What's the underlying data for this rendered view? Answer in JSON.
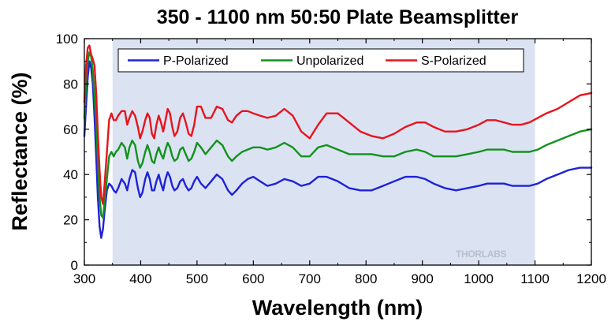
{
  "chart_data": {
    "type": "line",
    "title": "350 - 1100 nm 50:50 Plate Beamsplitter",
    "xlabel": "Wavelength (nm)",
    "ylabel": "Reflectance (%)",
    "xlim": [
      300,
      1200
    ],
    "ylim": [
      0,
      100
    ],
    "xticks": [
      300,
      400,
      500,
      600,
      700,
      800,
      900,
      1000,
      1100,
      1200
    ],
    "yticks": [
      0,
      20,
      40,
      60,
      80,
      100
    ],
    "highlight_band": [
      350,
      1100
    ],
    "highlight_color": "#dbe3f3",
    "grid": false,
    "legend_position": "top",
    "watermark": "THORLABS",
    "series": [
      {
        "name": "P-Polarized",
        "color": "#1f22d6",
        "points": [
          [
            300,
            57
          ],
          [
            303,
            70
          ],
          [
            306,
            83
          ],
          [
            309,
            90
          ],
          [
            312,
            87
          ],
          [
            315,
            80
          ],
          [
            318,
            65
          ],
          [
            321,
            48
          ],
          [
            324,
            30
          ],
          [
            327,
            17
          ],
          [
            330,
            12
          ],
          [
            333,
            16
          ],
          [
            336,
            24
          ],
          [
            340,
            33
          ],
          [
            344,
            36
          ],
          [
            348,
            35
          ],
          [
            352,
            33
          ],
          [
            356,
            32
          ],
          [
            360,
            34
          ],
          [
            366,
            38
          ],
          [
            372,
            36
          ],
          [
            376,
            33
          ],
          [
            380,
            38
          ],
          [
            385,
            42
          ],
          [
            390,
            41
          ],
          [
            395,
            34
          ],
          [
            399,
            30
          ],
          [
            403,
            32
          ],
          [
            408,
            38
          ],
          [
            412,
            41
          ],
          [
            416,
            38
          ],
          [
            420,
            33
          ],
          [
            424,
            33
          ],
          [
            428,
            37
          ],
          [
            432,
            40
          ],
          [
            436,
            36
          ],
          [
            440,
            33
          ],
          [
            444,
            38
          ],
          [
            448,
            41
          ],
          [
            452,
            39
          ],
          [
            456,
            35
          ],
          [
            460,
            33
          ],
          [
            465,
            34
          ],
          [
            470,
            37
          ],
          [
            475,
            38
          ],
          [
            480,
            35
          ],
          [
            485,
            33
          ],
          [
            490,
            34
          ],
          [
            495,
            37
          ],
          [
            500,
            39
          ],
          [
            507,
            36
          ],
          [
            515,
            34
          ],
          [
            525,
            37
          ],
          [
            535,
            40
          ],
          [
            545,
            38
          ],
          [
            555,
            33
          ],
          [
            562,
            31
          ],
          [
            570,
            33
          ],
          [
            580,
            36
          ],
          [
            590,
            38
          ],
          [
            600,
            39
          ],
          [
            612,
            37
          ],
          [
            625,
            35
          ],
          [
            640,
            36
          ],
          [
            655,
            38
          ],
          [
            670,
            37
          ],
          [
            685,
            35
          ],
          [
            700,
            36
          ],
          [
            715,
            39
          ],
          [
            730,
            39
          ],
          [
            750,
            37
          ],
          [
            770,
            34
          ],
          [
            790,
            33
          ],
          [
            810,
            33
          ],
          [
            830,
            35
          ],
          [
            850,
            37
          ],
          [
            870,
            39
          ],
          [
            890,
            39
          ],
          [
            905,
            38
          ],
          [
            920,
            36
          ],
          [
            940,
            34
          ],
          [
            960,
            33
          ],
          [
            980,
            34
          ],
          [
            1000,
            35
          ],
          [
            1015,
            36
          ],
          [
            1030,
            36
          ],
          [
            1045,
            36
          ],
          [
            1060,
            35
          ],
          [
            1075,
            35
          ],
          [
            1090,
            35
          ],
          [
            1105,
            36
          ],
          [
            1120,
            38
          ],
          [
            1140,
            40
          ],
          [
            1160,
            42
          ],
          [
            1180,
            43
          ],
          [
            1200,
            43
          ]
        ]
      },
      {
        "name": "Unpolarized",
        "color": "#12921d",
        "points": [
          [
            300,
            65
          ],
          [
            303,
            80
          ],
          [
            306,
            90
          ],
          [
            309,
            94
          ],
          [
            312,
            92
          ],
          [
            315,
            86
          ],
          [
            318,
            75
          ],
          [
            321,
            62
          ],
          [
            324,
            46
          ],
          [
            327,
            30
          ],
          [
            330,
            22
          ],
          [
            333,
            21
          ],
          [
            336,
            28
          ],
          [
            340,
            38
          ],
          [
            344,
            48
          ],
          [
            348,
            50
          ],
          [
            352,
            48
          ],
          [
            356,
            50
          ],
          [
            360,
            51
          ],
          [
            366,
            54
          ],
          [
            372,
            52
          ],
          [
            376,
            47
          ],
          [
            380,
            52
          ],
          [
            385,
            55
          ],
          [
            390,
            53
          ],
          [
            395,
            46
          ],
          [
            399,
            43
          ],
          [
            403,
            45
          ],
          [
            408,
            50
          ],
          [
            412,
            53
          ],
          [
            416,
            50
          ],
          [
            420,
            46
          ],
          [
            424,
            45
          ],
          [
            428,
            49
          ],
          [
            432,
            52
          ],
          [
            436,
            49
          ],
          [
            440,
            47
          ],
          [
            444,
            51
          ],
          [
            448,
            54
          ],
          [
            452,
            52
          ],
          [
            456,
            48
          ],
          [
            460,
            46
          ],
          [
            465,
            47
          ],
          [
            470,
            51
          ],
          [
            475,
            52
          ],
          [
            480,
            49
          ],
          [
            485,
            46
          ],
          [
            490,
            47
          ],
          [
            495,
            50
          ],
          [
            500,
            54
          ],
          [
            507,
            52
          ],
          [
            515,
            49
          ],
          [
            525,
            52
          ],
          [
            535,
            55
          ],
          [
            545,
            53
          ],
          [
            555,
            48
          ],
          [
            562,
            46
          ],
          [
            570,
            48
          ],
          [
            580,
            50
          ],
          [
            590,
            51
          ],
          [
            600,
            52
          ],
          [
            612,
            52
          ],
          [
            625,
            51
          ],
          [
            640,
            52
          ],
          [
            655,
            54
          ],
          [
            670,
            52
          ],
          [
            685,
            48
          ],
          [
            700,
            48
          ],
          [
            715,
            52
          ],
          [
            730,
            53
          ],
          [
            750,
            51
          ],
          [
            770,
            49
          ],
          [
            790,
            49
          ],
          [
            810,
            49
          ],
          [
            830,
            48
          ],
          [
            850,
            48
          ],
          [
            870,
            50
          ],
          [
            890,
            51
          ],
          [
            905,
            50
          ],
          [
            920,
            48
          ],
          [
            940,
            48
          ],
          [
            960,
            48
          ],
          [
            980,
            49
          ],
          [
            1000,
            50
          ],
          [
            1015,
            51
          ],
          [
            1030,
            51
          ],
          [
            1045,
            51
          ],
          [
            1060,
            50
          ],
          [
            1075,
            50
          ],
          [
            1090,
            50
          ],
          [
            1105,
            51
          ],
          [
            1120,
            53
          ],
          [
            1140,
            55
          ],
          [
            1160,
            57
          ],
          [
            1180,
            59
          ],
          [
            1200,
            60
          ]
        ]
      },
      {
        "name": "S-Polarized",
        "color": "#e8141c",
        "points": [
          [
            300,
            72
          ],
          [
            303,
            88
          ],
          [
            306,
            96
          ],
          [
            309,
            97
          ],
          [
            312,
            93
          ],
          [
            315,
            91
          ],
          [
            318,
            88
          ],
          [
            321,
            76
          ],
          [
            324,
            58
          ],
          [
            327,
            42
          ],
          [
            330,
            30
          ],
          [
            333,
            27
          ],
          [
            336,
            36
          ],
          [
            340,
            50
          ],
          [
            344,
            64
          ],
          [
            348,
            67
          ],
          [
            352,
            64
          ],
          [
            356,
            64
          ],
          [
            360,
            66
          ],
          [
            366,
            68
          ],
          [
            372,
            68
          ],
          [
            376,
            62
          ],
          [
            380,
            65
          ],
          [
            385,
            68
          ],
          [
            390,
            66
          ],
          [
            395,
            61
          ],
          [
            399,
            56
          ],
          [
            403,
            59
          ],
          [
            408,
            64
          ],
          [
            412,
            67
          ],
          [
            416,
            65
          ],
          [
            420,
            58
          ],
          [
            424,
            56
          ],
          [
            428,
            62
          ],
          [
            432,
            66
          ],
          [
            436,
            63
          ],
          [
            440,
            59
          ],
          [
            444,
            64
          ],
          [
            448,
            69
          ],
          [
            452,
            67
          ],
          [
            456,
            61
          ],
          [
            460,
            57
          ],
          [
            465,
            59
          ],
          [
            470,
            65
          ],
          [
            475,
            67
          ],
          [
            480,
            63
          ],
          [
            485,
            58
          ],
          [
            490,
            57
          ],
          [
            495,
            62
          ],
          [
            500,
            70
          ],
          [
            507,
            70
          ],
          [
            515,
            65
          ],
          [
            525,
            65
          ],
          [
            535,
            70
          ],
          [
            545,
            69
          ],
          [
            555,
            64
          ],
          [
            562,
            63
          ],
          [
            570,
            66
          ],
          [
            580,
            68
          ],
          [
            590,
            68
          ],
          [
            600,
            67
          ],
          [
            612,
            66
          ],
          [
            625,
            65
          ],
          [
            640,
            66
          ],
          [
            655,
            69
          ],
          [
            670,
            66
          ],
          [
            685,
            59
          ],
          [
            700,
            56
          ],
          [
            715,
            62
          ],
          [
            730,
            67
          ],
          [
            750,
            67
          ],
          [
            770,
            63
          ],
          [
            790,
            59
          ],
          [
            810,
            57
          ],
          [
            830,
            56
          ],
          [
            850,
            58
          ],
          [
            870,
            61
          ],
          [
            890,
            63
          ],
          [
            905,
            63
          ],
          [
            920,
            61
          ],
          [
            940,
            59
          ],
          [
            960,
            59
          ],
          [
            980,
            60
          ],
          [
            1000,
            62
          ],
          [
            1015,
            64
          ],
          [
            1030,
            64
          ],
          [
            1045,
            63
          ],
          [
            1060,
            62
          ],
          [
            1075,
            62
          ],
          [
            1090,
            63
          ],
          [
            1105,
            65
          ],
          [
            1120,
            67
          ],
          [
            1140,
            69
          ],
          [
            1160,
            72
          ],
          [
            1180,
            75
          ],
          [
            1200,
            76
          ]
        ]
      }
    ]
  }
}
